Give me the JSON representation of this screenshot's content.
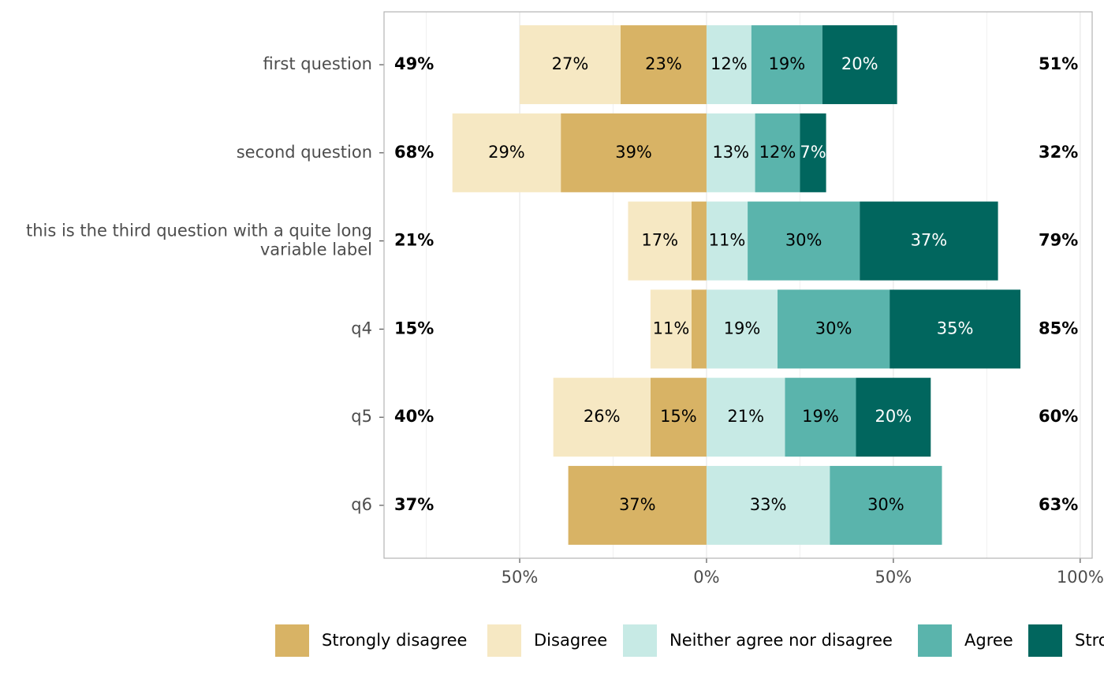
{
  "chart_data": {
    "type": "diverging-bar",
    "categories": [
      "first question",
      "second question",
      "this is the third question with a quite long\nvariable label",
      "q4",
      "q5",
      "q6"
    ],
    "negative_series": [
      0,
      1
    ],
    "series": [
      {
        "name": "Strongly disagree",
        "color": "#d8b365",
        "label_color": "#000000",
        "values": [
          23,
          39,
          4,
          4,
          15,
          37
        ],
        "value_labels": [
          "23%",
          "39%",
          null,
          null,
          "15%",
          "37%"
        ]
      },
      {
        "name": "Disagree",
        "color": "#f6e8c3",
        "label_color": "#000000",
        "values": [
          27,
          29,
          17,
          11,
          26,
          0
        ],
        "value_labels": [
          "27%",
          "29%",
          "17%",
          "11%",
          "26%",
          null
        ]
      },
      {
        "name": "Neither agree nor disagree",
        "color": "#c7eae5",
        "label_color": "#000000",
        "values": [
          12,
          13,
          11,
          19,
          21,
          33
        ],
        "value_labels": [
          "12%",
          "13%",
          "11%",
          "19%",
          "21%",
          "33%"
        ]
      },
      {
        "name": "Agree",
        "color": "#5ab4ac",
        "label_color": "#000000",
        "values": [
          19,
          12,
          30,
          30,
          19,
          30
        ],
        "value_labels": [
          "19%",
          "12%",
          "30%",
          "30%",
          "19%",
          "30%"
        ]
      },
      {
        "name": "Strongly agree",
        "color": "#01665e",
        "label_color": "#ffffff",
        "values": [
          20,
          7,
          37,
          35,
          20,
          0
        ],
        "value_labels": [
          "20%",
          "7%",
          "37%",
          "35%",
          "20%",
          null
        ]
      }
    ],
    "left_totals": {
      "values": [
        49,
        68,
        21,
        15,
        40,
        37
      ],
      "value_labels": [
        "49%",
        "68%",
        "21%",
        "15%",
        "40%",
        "37%"
      ]
    },
    "right_totals": {
      "values": [
        51,
        32,
        79,
        85,
        60,
        63
      ],
      "value_labels": [
        "51%",
        "32%",
        "79%",
        "85%",
        "60%",
        "63%"
      ]
    },
    "xlim": [
      -86.3,
      103.2
    ],
    "xticks": [
      {
        "value": -50,
        "label": "50%"
      },
      {
        "value": 0,
        "label": "0%"
      },
      {
        "value": 50,
        "label": "50%"
      },
      {
        "value": 100,
        "label": "100%"
      }
    ],
    "xminor": [
      -75,
      -25,
      25,
      75
    ],
    "grid": true,
    "legend": "bottom"
  }
}
